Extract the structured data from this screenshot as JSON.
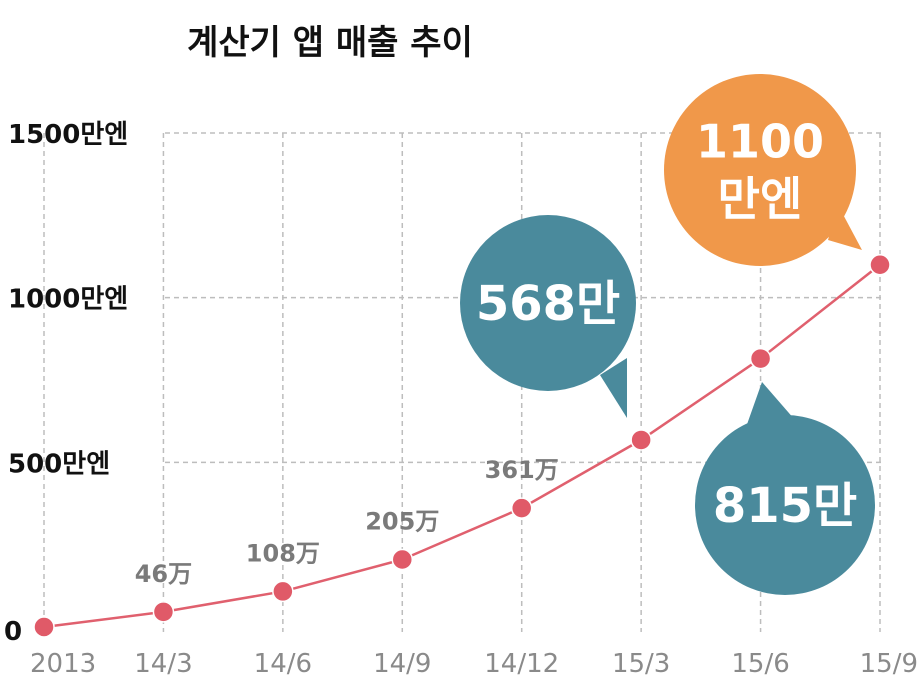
{
  "chart_data": {
    "type": "line",
    "title": "계산기 앱 매출 추이",
    "categories": [
      "2013",
      "14/3",
      "14/6",
      "14/9",
      "14/12",
      "15/3",
      "15/6",
      "15/9"
    ],
    "series": [
      {
        "name": "매출",
        "values": [
          0,
          46,
          108,
          205,
          361,
          568,
          815,
          1100
        ]
      }
    ],
    "ylim": [
      0,
      1500
    ],
    "y_ticks": [
      {
        "value": 0,
        "label": "0"
      },
      {
        "value": 500,
        "label": "500만엔"
      },
      {
        "value": 1000,
        "label": "1000만엔"
      },
      {
        "value": 1500,
        "label": "1500만엔"
      }
    ],
    "data_labels": [
      {
        "index": 1,
        "text": "46万"
      },
      {
        "index": 2,
        "text": "108万"
      },
      {
        "index": 3,
        "text": "205万"
      },
      {
        "index": 4,
        "text": "361万"
      }
    ],
    "callouts": [
      {
        "index": 5,
        "lines": [
          "568만"
        ],
        "color": "#4a8a9c"
      },
      {
        "index": 6,
        "lines": [
          "815만"
        ],
        "color": "#4a8a9c"
      },
      {
        "index": 7,
        "lines": [
          "1100",
          "만엔"
        ],
        "color": "#f0984a"
      }
    ],
    "line_color": "#e0606e",
    "marker_color": "#e05a68",
    "grid": true
  }
}
